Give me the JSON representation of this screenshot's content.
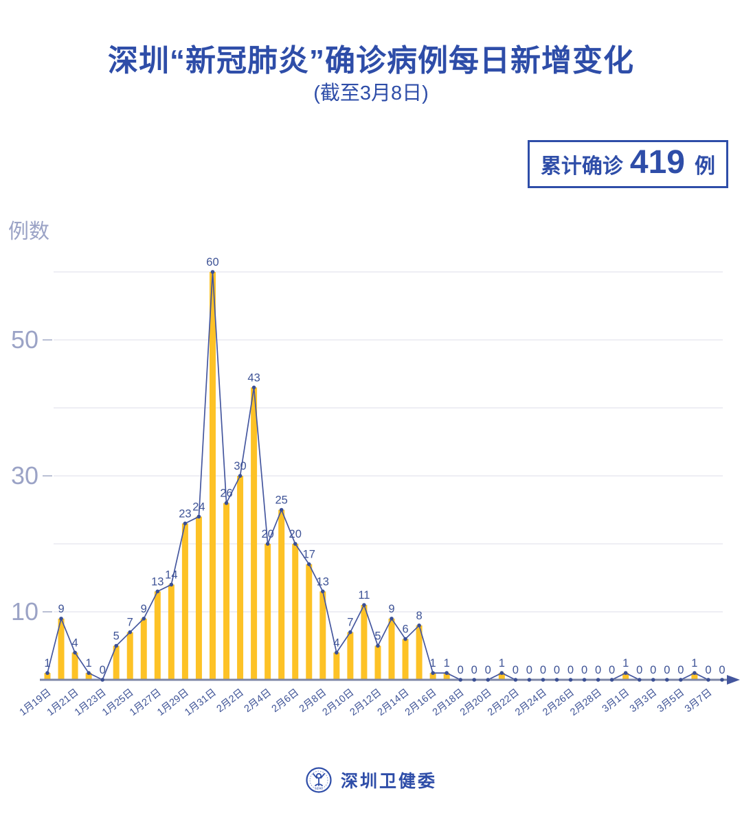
{
  "title": "深圳“新冠肺炎”确诊病例每日新增变化",
  "subtitle": "(截至3月8日)",
  "badge": {
    "prefix": "累计确诊",
    "value": "419",
    "suffix": "例"
  },
  "footer": {
    "org": "深圳卫健委",
    "logo": "shenzhen-health-commission-seal",
    "logo_text": "SZHC"
  },
  "colors": {
    "title": "#2e4da8",
    "label": "#3e5396",
    "line": "#44569e",
    "point": "#3a4f94",
    "bar": "#fdc226",
    "axis": "#7d86a6",
    "grid": "#e8e9f0",
    "tick_label": "#9ba3c6"
  },
  "chart_data": {
    "type": "bar",
    "overlay": "line",
    "title": "深圳“新冠肺炎”确诊病例每日新增变化",
    "subtitle": "(截至3月8日)",
    "xlabel": "",
    "ylabel": "例数",
    "ylim": [
      0,
      62
    ],
    "grid": "horizontal gridlines every 10 from 10 to 60, legend none",
    "cumulative_total": 419,
    "categories": [
      "1月19日",
      "1月20日",
      "1月21日",
      "1月22日",
      "1月23日",
      "1月24日",
      "1月25日",
      "1月26日",
      "1月27日",
      "1月28日",
      "1月29日",
      "1月30日",
      "1月31日",
      "2月1日",
      "2月2日",
      "2月3日",
      "2月4日",
      "2月5日",
      "2月6日",
      "2月7日",
      "2月8日",
      "2月9日",
      "2月10日",
      "2月11日",
      "2月12日",
      "2月13日",
      "2月14日",
      "2月15日",
      "2月16日",
      "2月17日",
      "2月18日",
      "2月19日",
      "2月20日",
      "2月21日",
      "2月22日",
      "2月23日",
      "2月24日",
      "2月25日",
      "2月26日",
      "2月27日",
      "2月28日",
      "2月29日",
      "3月1日",
      "3月2日",
      "3月3日",
      "3月4日",
      "3月5日",
      "3月6日",
      "3月7日",
      "3月8日"
    ],
    "values": [
      1,
      9,
      4,
      1,
      0,
      5,
      7,
      9,
      13,
      14,
      23,
      24,
      60,
      26,
      30,
      43,
      20,
      25,
      20,
      17,
      13,
      4,
      7,
      11,
      5,
      9,
      6,
      8,
      1,
      1,
      0,
      0,
      0,
      1,
      0,
      0,
      0,
      0,
      0,
      0,
      0,
      0,
      1,
      0,
      0,
      0,
      0,
      1,
      0,
      0
    ],
    "x_tick_labels": [
      "1月19日",
      "1月21日",
      "1月23日",
      "1月25日",
      "1月27日",
      "1月29日",
      "1月31日",
      "2月2日",
      "2月4日",
      "2月6日",
      "2月8日",
      "2月10日",
      "2月12日",
      "2月14日",
      "2月16日",
      "2月18日",
      "2月20日",
      "2月22日",
      "2月24日",
      "2月26日",
      "2月28日",
      "3月1日",
      "3月3日",
      "3月5日",
      "3月7日"
    ],
    "y_tick_labels": [
      10,
      30,
      50
    ],
    "gridline_values": [
      10,
      20,
      30,
      40,
      50,
      60
    ]
  }
}
